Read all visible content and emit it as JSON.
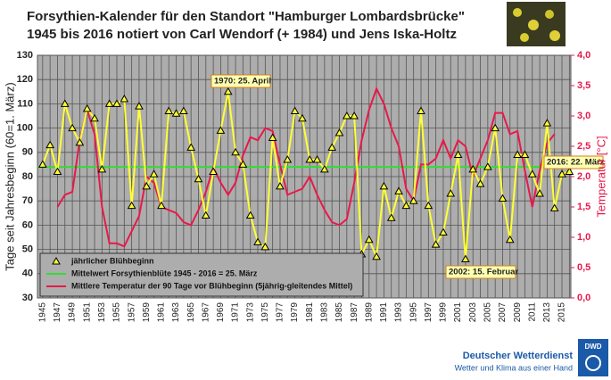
{
  "chart_data": {
    "type": "line",
    "title": "Forsythien-Kalender für den Standort \"Hamburger Lombardsbrücke\"",
    "subtitle": "1945 bis 2016 notiert  von Carl Wendorf (+ 1984) und Jens Iska-Holtz",
    "y_label": "Tage seit Jahresbeginn (60=1. März)",
    "y2_label": "Temperatur [°C]",
    "x": [
      1945,
      1946,
      1947,
      1948,
      1949,
      1950,
      1951,
      1952,
      1953,
      1954,
      1955,
      1956,
      1957,
      1958,
      1959,
      1960,
      1961,
      1962,
      1963,
      1964,
      1965,
      1966,
      1967,
      1968,
      1969,
      1970,
      1971,
      1972,
      1973,
      1974,
      1975,
      1976,
      1977,
      1978,
      1979,
      1980,
      1981,
      1982,
      1983,
      1984,
      1985,
      1986,
      1987,
      1988,
      1989,
      1990,
      1991,
      1992,
      1993,
      1994,
      1995,
      1996,
      1997,
      1998,
      1999,
      2000,
      2001,
      2002,
      2003,
      2004,
      2005,
      2006,
      2007,
      2008,
      2009,
      2010,
      2011,
      2012,
      2013,
      2014,
      2015,
      2016
    ],
    "series": [
      {
        "name": "jährlicher Blühbeginn",
        "color": "#ffff33",
        "values": [
          85,
          93,
          82,
          110,
          100,
          94,
          108,
          104,
          83,
          110,
          110,
          112,
          68,
          109,
          76,
          81,
          68,
          107,
          106,
          107,
          92,
          79,
          64,
          82,
          99,
          115,
          90,
          85,
          64,
          53,
          51,
          96,
          76,
          87,
          107,
          104,
          87,
          87,
          83,
          92,
          98,
          105,
          105,
          48,
          54,
          47,
          76,
          63,
          74,
          68,
          70,
          107,
          68,
          52,
          57,
          73,
          89,
          46,
          83,
          77,
          84,
          100,
          71,
          54,
          89,
          89,
          81,
          73,
          102,
          67,
          81,
          82
        ]
      },
      {
        "name": "Mittlere Temperatur der 90 Tage vor Blühbeginn (5jährig-gleitendes Mittel)",
        "color": "#e8194a",
        "axis": "y2",
        "values": [
          null,
          null,
          1.5,
          1.7,
          1.75,
          2.6,
          3.1,
          2.7,
          1.5,
          0.9,
          0.9,
          0.85,
          1.1,
          1.35,
          2.0,
          1.9,
          1.5,
          1.45,
          1.4,
          1.25,
          1.2,
          1.45,
          1.75,
          2.15,
          1.9,
          1.7,
          1.9,
          2.35,
          2.65,
          2.6,
          2.8,
          2.75,
          2.2,
          1.7,
          1.75,
          1.8,
          2.0,
          1.7,
          1.45,
          1.25,
          1.2,
          1.3,
          1.9,
          2.6,
          3.1,
          3.45,
          3.2,
          2.8,
          2.5,
          1.8,
          1.6,
          2.2,
          2.2,
          2.3,
          2.6,
          2.3,
          2.6,
          2.5,
          2.0,
          2.3,
          2.6,
          3.05,
          3.05,
          2.7,
          2.75,
          2.1,
          1.5,
          2.1,
          2.55,
          2.7,
          null,
          null
        ]
      }
    ],
    "mean_line": {
      "name": "Mittelwert Forsythienblüte 1945 - 2016 = 25. März",
      "value": 84,
      "color": "#33dd33"
    },
    "annotations": [
      "1970: 25. April",
      "2016: 22. März",
      "2002: 15. Februar"
    ],
    "xlim": [
      1944.3,
      2016.2
    ],
    "xticks": [
      1945,
      1947,
      1949,
      1951,
      1953,
      1955,
      1957,
      1959,
      1961,
      1963,
      1965,
      1967,
      1969,
      1971,
      1973,
      1975,
      1977,
      1979,
      1981,
      1983,
      1985,
      1987,
      1989,
      1991,
      1993,
      1995,
      1997,
      1999,
      2001,
      2003,
      2005,
      2007,
      2009,
      2011,
      2013,
      2015
    ],
    "ylim": [
      30,
      130
    ],
    "yticks": [
      30,
      40,
      50,
      60,
      70,
      80,
      90,
      100,
      110,
      120,
      130
    ],
    "y2lim": [
      0,
      4
    ],
    "y2ticks": [
      {
        "value": 0,
        "label": "0,0"
      },
      {
        "value": 0.5,
        "label": "0,5"
      },
      {
        "value": 1,
        "label": "1,0"
      },
      {
        "value": 1.5,
        "label": "1,5"
      },
      {
        "value": 2,
        "label": "2,0"
      },
      {
        "value": 2.5,
        "label": "2,5"
      },
      {
        "value": 3,
        "label": "3,0"
      },
      {
        "value": 3.5,
        "label": "3,5"
      },
      {
        "value": 4,
        "label": "4,0"
      }
    ],
    "grid": true
  },
  "footer": {
    "org": "Deutscher Wetterdienst",
    "slogan": "Wetter und Klima aus einer Hand",
    "logo": "DWD"
  }
}
